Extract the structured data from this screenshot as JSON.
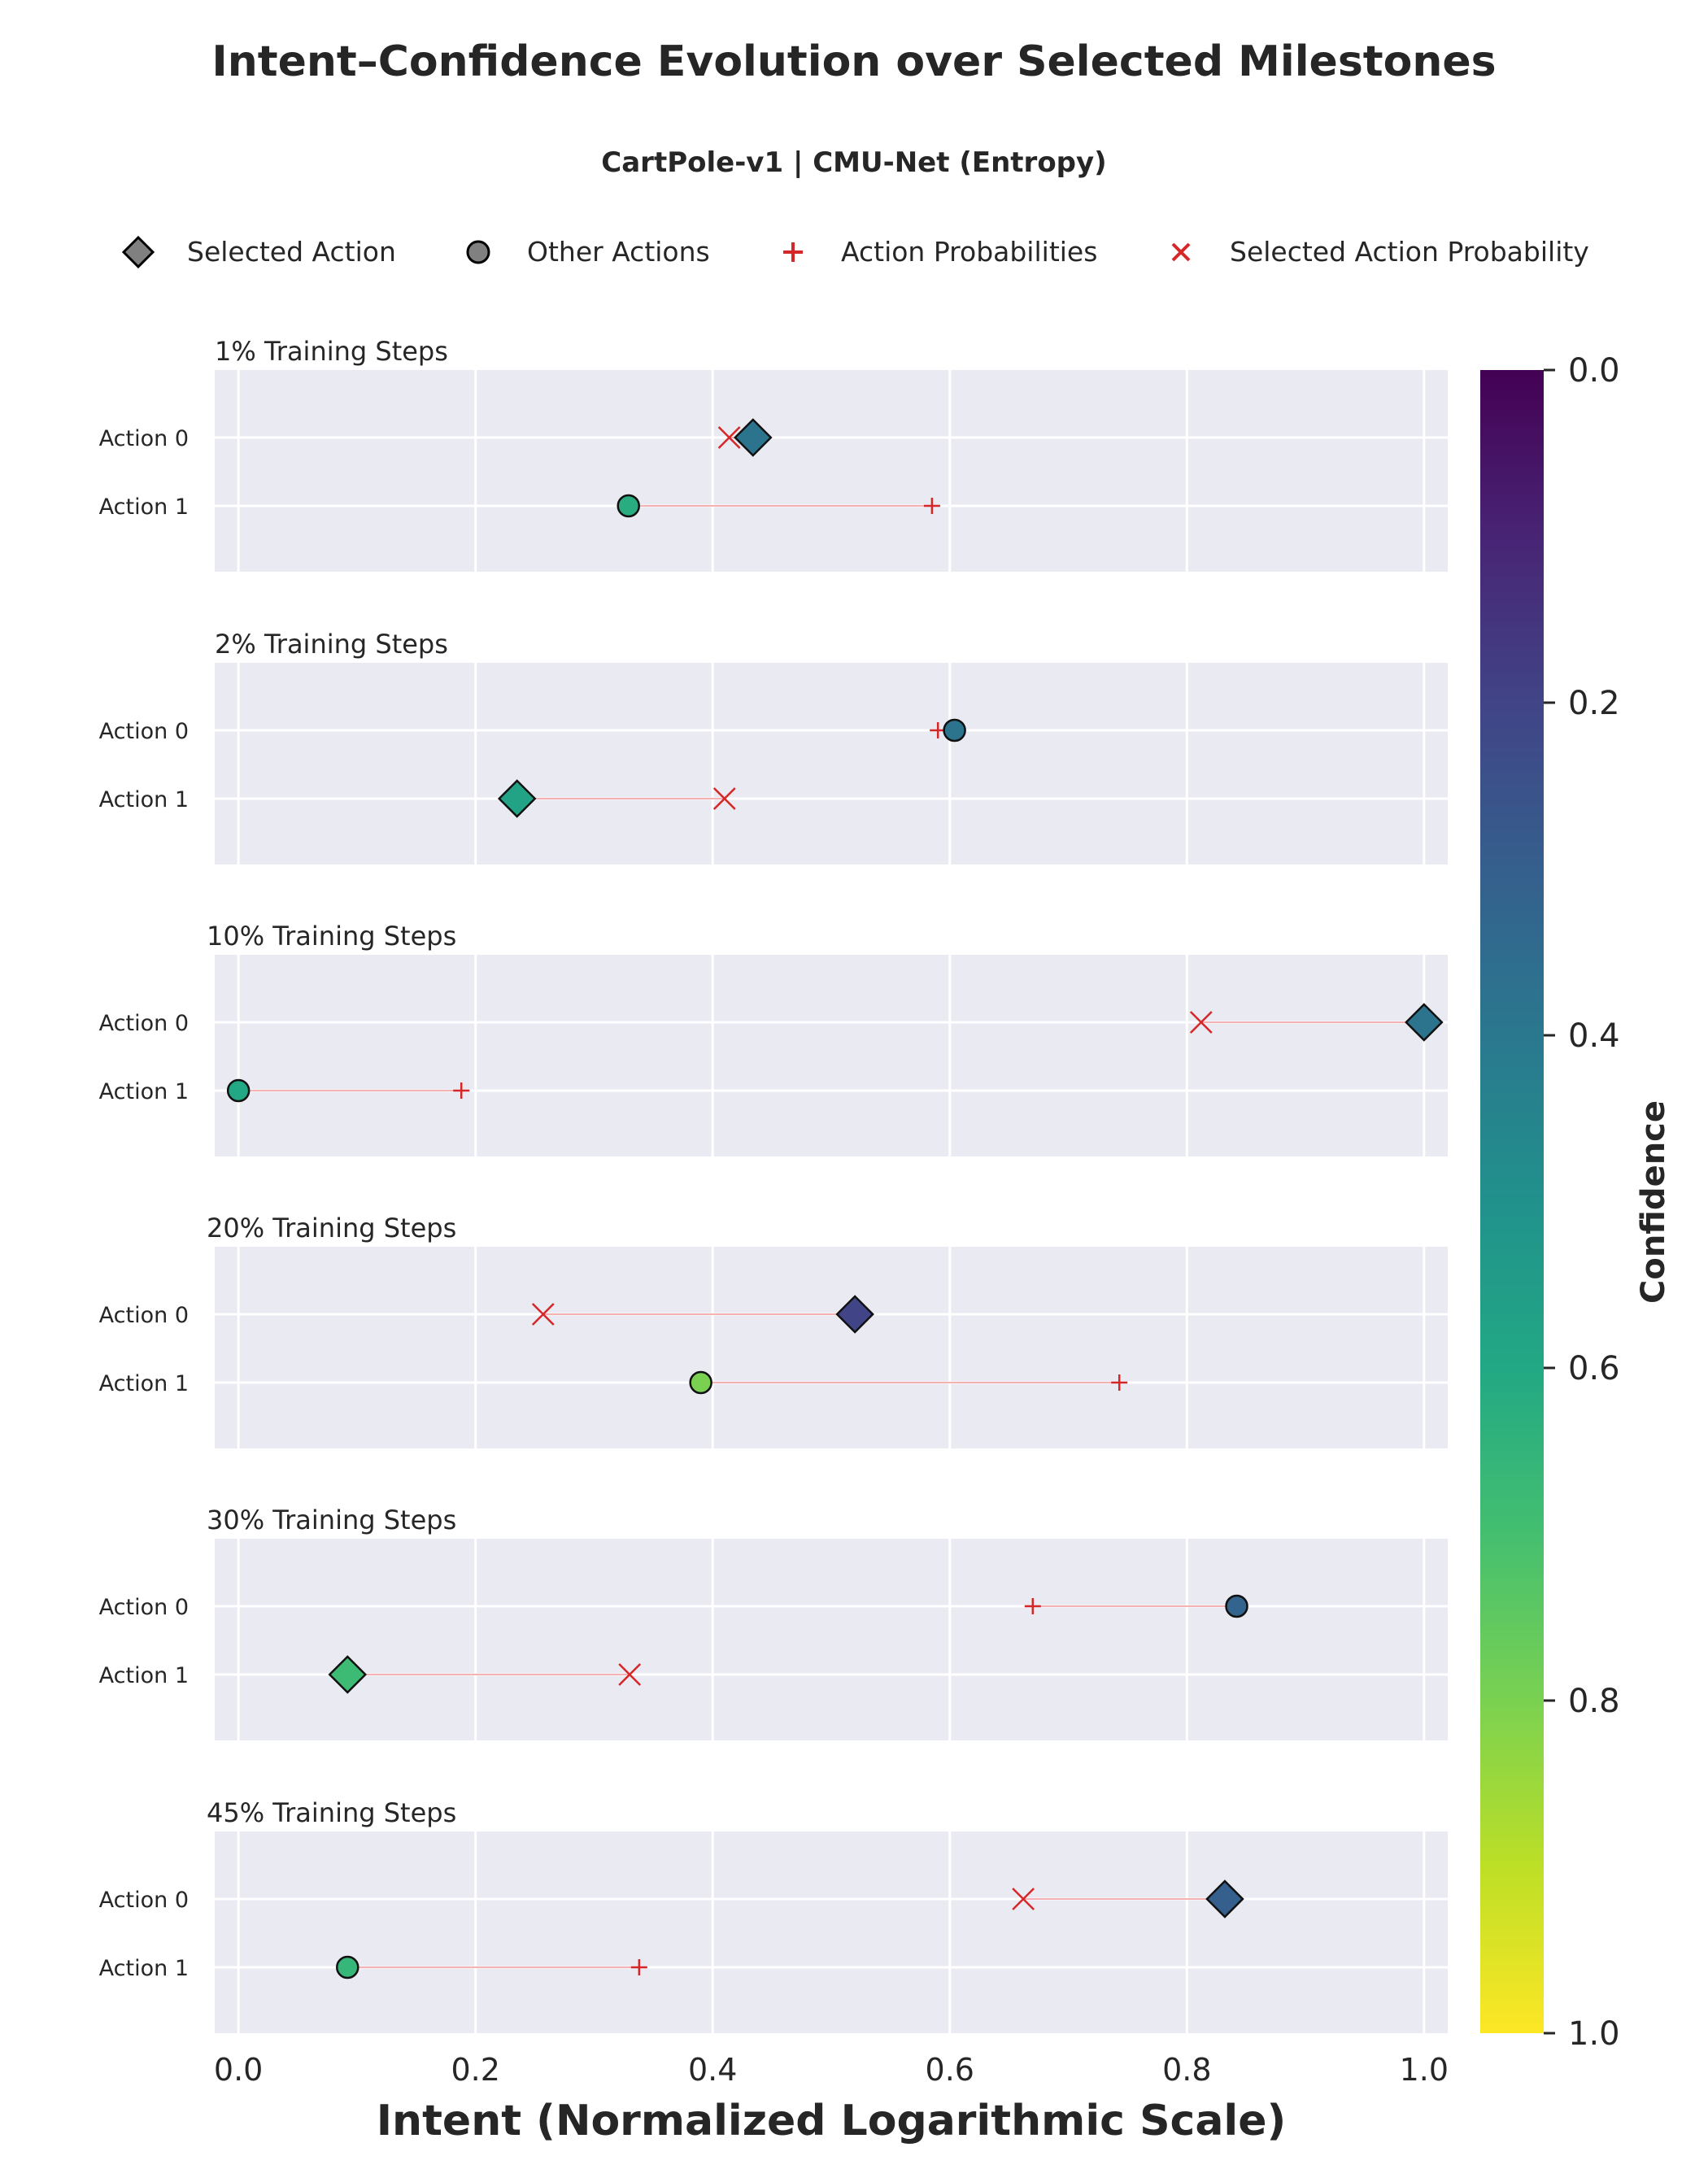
{
  "chart_data": {
    "type": "scatter",
    "title": "Intent–Confidence Evolution over Selected Milestones",
    "subtitle": "CartPole-v1 | CMU-Net (Entropy)",
    "xlabel": "Intent (Normalized Logarithmic Scale)",
    "xlim": [
      -0.02,
      1.02
    ],
    "x_ticks": [
      "0.0",
      "0.2",
      "0.4",
      "0.6",
      "0.8",
      "1.0"
    ],
    "grid": true,
    "legend": {
      "placement": "top",
      "entries": [
        {
          "label": "Selected Action",
          "marker": "diamond"
        },
        {
          "label": "Other Actions",
          "marker": "circle"
        },
        {
          "label": "Action Probabilities",
          "marker": "plus"
        },
        {
          "label": "Selected Action Probability",
          "marker": "x"
        }
      ]
    },
    "colorbar": {
      "label": "Confidence",
      "colormap": "viridis",
      "reversed": true,
      "range": [
        0.0,
        1.0
      ],
      "ticks": [
        "0.0",
        "0.2",
        "0.4",
        "0.6",
        "0.8",
        "1.0"
      ]
    },
    "actions": [
      "Action 0",
      "Action 1"
    ],
    "panels": [
      {
        "title": "1% Training Steps",
        "selected": 0,
        "rows": [
          {
            "intent": 0.434,
            "prob": 0.414,
            "confidence": 0.38
          },
          {
            "intent": 0.329,
            "prob": 0.585,
            "confidence": 0.62
          }
        ]
      },
      {
        "title": "2% Training Steps",
        "selected": 1,
        "rows": [
          {
            "intent": 0.604,
            "prob": 0.59,
            "confidence": 0.38
          },
          {
            "intent": 0.235,
            "prob": 0.41,
            "confidence": 0.58
          }
        ]
      },
      {
        "title": "10% Training Steps",
        "selected": 0,
        "rows": [
          {
            "intent": 1.0,
            "prob": 0.812,
            "confidence": 0.38
          },
          {
            "intent": 0.0,
            "prob": 0.188,
            "confidence": 0.6
          }
        ]
      },
      {
        "title": "20% Training Steps",
        "selected": 0,
        "rows": [
          {
            "intent": 0.52,
            "prob": 0.257,
            "confidence": 0.2
          },
          {
            "intent": 0.39,
            "prob": 0.743,
            "confidence": 0.8
          }
        ]
      },
      {
        "title": "30% Training Steps",
        "selected": 1,
        "rows": [
          {
            "intent": 0.842,
            "prob": 0.67,
            "confidence": 0.32
          },
          {
            "intent": 0.092,
            "prob": 0.33,
            "confidence": 0.68
          }
        ]
      },
      {
        "title": "45% Training Steps",
        "selected": 0,
        "rows": [
          {
            "intent": 0.832,
            "prob": 0.662,
            "confidence": 0.3
          },
          {
            "intent": 0.092,
            "prob": 0.338,
            "confidence": 0.66
          }
        ]
      }
    ]
  }
}
